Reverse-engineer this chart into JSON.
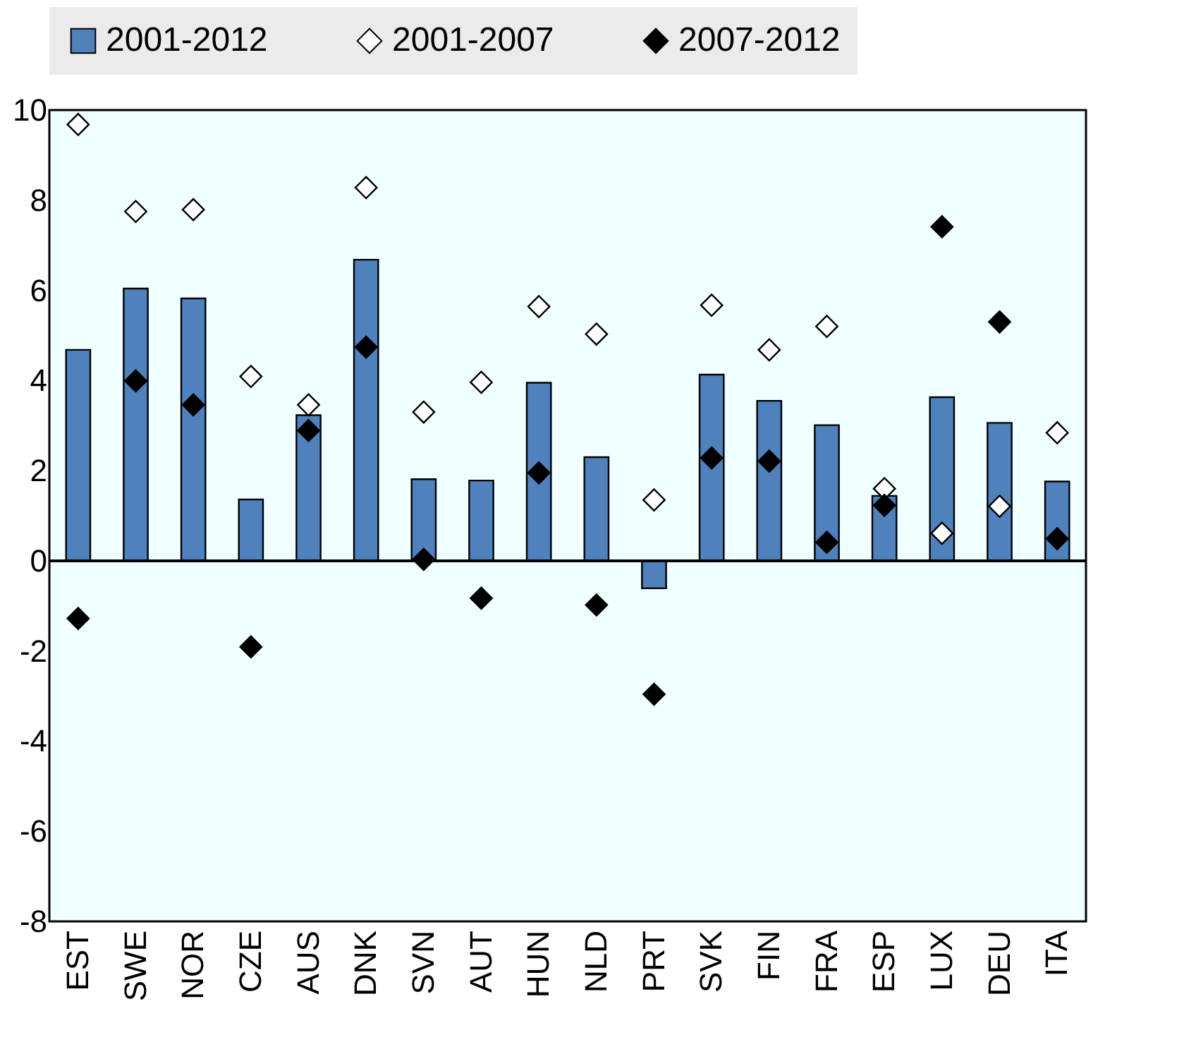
{
  "chart_data": {
    "type": "bar",
    "categories": [
      "EST",
      "SWE",
      "NOR",
      "CZE",
      "AUS",
      "DNK",
      "SVN",
      "AUT",
      "HUN",
      "NLD",
      "PRT",
      "SVK",
      "FIN",
      "FRA",
      "ESP",
      "LUX",
      "DEU",
      "ITA"
    ],
    "series": [
      {
        "name": "2001-2012",
        "color": "#4f81bd",
        "values": [
          4.68,
          6.04,
          5.82,
          1.36,
          3.23,
          6.68,
          1.81,
          1.78,
          3.95,
          2.3,
          -0.61,
          4.13,
          3.55,
          3.01,
          1.44,
          3.63,
          3.06,
          1.76
        ]
      },
      {
        "name": "2001-2007",
        "type": "scatter",
        "marker": "diamond",
        "color": "#ffffff",
        "values": [
          9.68,
          7.75,
          7.79,
          4.09,
          3.46,
          8.28,
          3.3,
          3.96,
          5.64,
          5.03,
          1.35,
          5.67,
          4.68,
          5.2,
          1.6,
          0.61,
          1.21,
          2.84
        ]
      },
      {
        "name": "2007-2012",
        "type": "scatter",
        "marker": "diamond",
        "color": "#000000",
        "values": [
          -1.28,
          3.99,
          3.46,
          -1.91,
          2.89,
          4.74,
          0.03,
          -0.83,
          1.95,
          -0.98,
          -2.96,
          2.28,
          2.21,
          0.41,
          1.23,
          7.41,
          5.3,
          0.49
        ]
      }
    ],
    "ylim": [
      -8,
      10
    ],
    "yticks": [
      -8,
      -6,
      -4,
      -2,
      0,
      2,
      4,
      6,
      8,
      10
    ],
    "ref_lines": [
      {
        "axis": "y",
        "value": 0,
        "color": "#000000"
      }
    ],
    "grid": false,
    "legend": "top"
  }
}
